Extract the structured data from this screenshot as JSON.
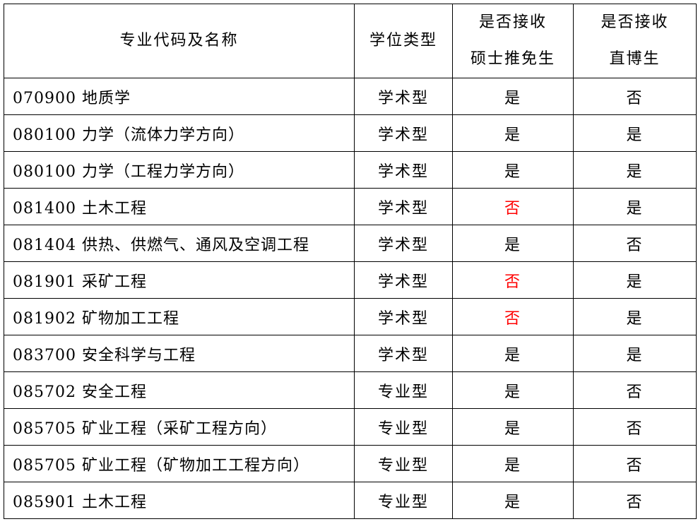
{
  "headers": {
    "major": "专业代码及名称",
    "degree": "学位类型",
    "master_line1": "是否接收",
    "master_line2": "硕士推免生",
    "phd_line1": "是否接收",
    "phd_line2": "直博生"
  },
  "highlight_color": "#ff0000",
  "rows": [
    {
      "major": "070900 地质学",
      "degree": "学术型",
      "master": "是",
      "phd": "否",
      "master_red": false
    },
    {
      "major": "080100 力学（流体力学方向）",
      "degree": "学术型",
      "master": "是",
      "phd": "是",
      "master_red": false
    },
    {
      "major": "080100 力学（工程力学方向）",
      "degree": "学术型",
      "master": "是",
      "phd": "是",
      "master_red": false
    },
    {
      "major": "081400 土木工程",
      "degree": "学术型",
      "master": "否",
      "phd": "是",
      "master_red": true
    },
    {
      "major": "081404 供热、供燃气、通风及空调工程",
      "degree": "学术型",
      "master": "是",
      "phd": "否",
      "master_red": false
    },
    {
      "major": "081901 采矿工程",
      "degree": "学术型",
      "master": "否",
      "phd": "是",
      "master_red": true
    },
    {
      "major": "081902 矿物加工工程",
      "degree": "学术型",
      "master": "否",
      "phd": "是",
      "master_red": true
    },
    {
      "major": "083700 安全科学与工程",
      "degree": "学术型",
      "master": "是",
      "phd": "是",
      "master_red": false
    },
    {
      "major": "085702 安全工程",
      "degree": "专业型",
      "master": "是",
      "phd": "否",
      "master_red": false
    },
    {
      "major": "085705 矿业工程（采矿工程方向）",
      "degree": "专业型",
      "master": "是",
      "phd": "否",
      "master_red": false
    },
    {
      "major": "085705 矿业工程（矿物加工工程方向）",
      "degree": "专业型",
      "master": "是",
      "phd": "否",
      "master_red": false
    },
    {
      "major": "085901 土木工程",
      "degree": "专业型",
      "master": "是",
      "phd": "否",
      "master_red": false
    }
  ]
}
